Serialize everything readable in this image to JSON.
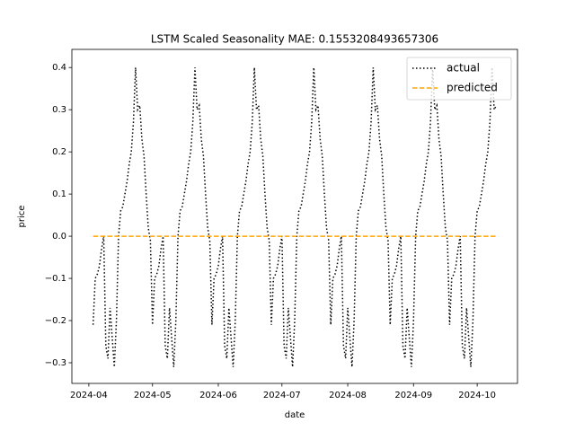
{
  "chart_data": {
    "type": "line",
    "title": "LSTM Scaled Seasonality MAE: 0.1553208493657306",
    "xlabel": "date",
    "ylabel": "price",
    "x": [
      "2024-04-03",
      "2024-04-04",
      "2024-04-05",
      "2024-04-06",
      "2024-04-07",
      "2024-04-08",
      "2024-04-09",
      "2024-04-10",
      "2024-04-11",
      "2024-04-12",
      "2024-04-13",
      "2024-04-14",
      "2024-04-15",
      "2024-04-16",
      "2024-04-17",
      "2024-04-18",
      "2024-04-19",
      "2024-04-20",
      "2024-04-21",
      "2024-04-22",
      "2024-04-23",
      "2024-04-24",
      "2024-04-25",
      "2024-04-26",
      "2024-04-27",
      "2024-04-28",
      "2024-04-29",
      "2024-04-30",
      "2024-05-01",
      "2024-05-02",
      "2024-05-03",
      "2024-05-04",
      "2024-05-05",
      "2024-05-06",
      "2024-05-07",
      "2024-05-08",
      "2024-05-09",
      "2024-05-10",
      "2024-05-11",
      "2024-05-12",
      "2024-05-13",
      "2024-05-14",
      "2024-05-15",
      "2024-05-16",
      "2024-05-17",
      "2024-05-18",
      "2024-05-19",
      "2024-05-20",
      "2024-05-21",
      "2024-05-22",
      "2024-05-23",
      "2024-05-24",
      "2024-05-25",
      "2024-05-26",
      "2024-05-27",
      "2024-05-28",
      "2024-05-29",
      "2024-05-30",
      "2024-05-31",
      "2024-06-01",
      "2024-06-02",
      "2024-06-03",
      "2024-06-04",
      "2024-06-05",
      "2024-06-06",
      "2024-06-07",
      "2024-06-08",
      "2024-06-09",
      "2024-06-10",
      "2024-06-11",
      "2024-06-12",
      "2024-06-13",
      "2024-06-14",
      "2024-06-15",
      "2024-06-16",
      "2024-06-17",
      "2024-06-18",
      "2024-06-19",
      "2024-06-20",
      "2024-06-21",
      "2024-06-22",
      "2024-06-23",
      "2024-06-24",
      "2024-06-25",
      "2024-06-26",
      "2024-06-27",
      "2024-06-28",
      "2024-06-29",
      "2024-06-30",
      "2024-07-01",
      "2024-07-02",
      "2024-07-03",
      "2024-07-04",
      "2024-07-05",
      "2024-07-06",
      "2024-07-07",
      "2024-07-08",
      "2024-07-09",
      "2024-07-10",
      "2024-07-11",
      "2024-07-12",
      "2024-07-13",
      "2024-07-14",
      "2024-07-15",
      "2024-07-16",
      "2024-07-17",
      "2024-07-18",
      "2024-07-19",
      "2024-07-20",
      "2024-07-21",
      "2024-07-22",
      "2024-07-23",
      "2024-07-24",
      "2024-07-25",
      "2024-07-26",
      "2024-07-27",
      "2024-07-28",
      "2024-07-29",
      "2024-07-30",
      "2024-07-31",
      "2024-08-01",
      "2024-08-02",
      "2024-08-03",
      "2024-08-04",
      "2024-08-05",
      "2024-08-06",
      "2024-08-07",
      "2024-08-08",
      "2024-08-09",
      "2024-08-10",
      "2024-08-11",
      "2024-08-12",
      "2024-08-13",
      "2024-08-14",
      "2024-08-15",
      "2024-08-16",
      "2024-08-17",
      "2024-08-18",
      "2024-08-19",
      "2024-08-20",
      "2024-08-21",
      "2024-08-22",
      "2024-08-23",
      "2024-08-24",
      "2024-08-25",
      "2024-08-26",
      "2024-08-27",
      "2024-08-28",
      "2024-08-29",
      "2024-08-30",
      "2024-08-31",
      "2024-09-01",
      "2024-09-02",
      "2024-09-03",
      "2024-09-04",
      "2024-09-05",
      "2024-09-06",
      "2024-09-07",
      "2024-09-08",
      "2024-09-09",
      "2024-09-10",
      "2024-09-11",
      "2024-09-12",
      "2024-09-13",
      "2024-09-14",
      "2024-09-15",
      "2024-09-16",
      "2024-09-17",
      "2024-09-18",
      "2024-09-19",
      "2024-09-20",
      "2024-09-21",
      "2024-09-22",
      "2024-09-23",
      "2024-09-24",
      "2024-09-25",
      "2024-09-26",
      "2024-09-27",
      "2024-09-28",
      "2024-09-29",
      "2024-09-30",
      "2024-10-01",
      "2024-10-02",
      "2024-10-03",
      "2024-10-04",
      "2024-10-05",
      "2024-10-06",
      "2024-10-07",
      "2024-10-08",
      "2024-10-09",
      "2024-10-10"
    ],
    "series": [
      {
        "name": "actual",
        "color": "#000000",
        "dash": "dotted",
        "values": [
          -0.21,
          -0.1,
          -0.09,
          -0.07,
          -0.03,
          0,
          -0.26,
          -0.29,
          -0.17,
          -0.24,
          -0.31,
          -0.2,
          0,
          0.06,
          0.07,
          0.1,
          0.13,
          0.17,
          0.2,
          0.27,
          0.4,
          0.3,
          0.31,
          0.23,
          0.19,
          0.1,
          0.02,
          -0.01,
          -0.21,
          -0.1,
          -0.09,
          -0.07,
          -0.03,
          0,
          -0.26,
          -0.29,
          -0.17,
          -0.24,
          -0.31,
          -0.2,
          0,
          0.06,
          0.07,
          0.1,
          0.13,
          0.17,
          0.2,
          0.27,
          0.4,
          0.3,
          0.31,
          0.23,
          0.19,
          0.1,
          0.02,
          -0.01,
          -0.21,
          -0.1,
          -0.09,
          -0.07,
          -0.03,
          0,
          -0.26,
          -0.29,
          -0.17,
          -0.24,
          -0.31,
          -0.2,
          0,
          0.06,
          0.07,
          0.1,
          0.13,
          0.17,
          0.2,
          0.27,
          0.4,
          0.3,
          0.31,
          0.23,
          0.19,
          0.1,
          0.02,
          -0.01,
          -0.21,
          -0.1,
          -0.09,
          -0.07,
          -0.03,
          0,
          -0.26,
          -0.29,
          -0.17,
          -0.24,
          -0.31,
          -0.2,
          0,
          0.06,
          0.07,
          0.1,
          0.13,
          0.17,
          0.2,
          0.27,
          0.4,
          0.3,
          0.31,
          0.23,
          0.19,
          0.1,
          0.02,
          -0.01,
          -0.21,
          -0.1,
          -0.09,
          -0.07,
          -0.03,
          0,
          -0.26,
          -0.29,
          -0.17,
          -0.24,
          -0.31,
          -0.2,
          0,
          0.06,
          0.07,
          0.1,
          0.13,
          0.17,
          0.2,
          0.27,
          0.4,
          0.3,
          0.31,
          0.23,
          0.19,
          0.1,
          0.02,
          -0.01,
          -0.21,
          -0.1,
          -0.09,
          -0.07,
          -0.03,
          0,
          -0.26,
          -0.29,
          -0.17,
          -0.24,
          -0.31,
          -0.2,
          0,
          0.06,
          0.07,
          0.1,
          0.13,
          0.17,
          0.2,
          0.27,
          0.4,
          0.3,
          0.31,
          0.23,
          0.19,
          0.1,
          0.02,
          -0.01,
          -0.21,
          -0.1,
          -0.09,
          -0.07,
          -0.03,
          0,
          -0.26,
          -0.29,
          -0.17,
          -0.24,
          -0.31,
          -0.2,
          0,
          0.06,
          0.07,
          0.1,
          0.13,
          0.17,
          0.2,
          0.27,
          0.4,
          0.3,
          0.31
        ]
      },
      {
        "name": "predicted",
        "color": "#ffa500",
        "dash": "dashed",
        "values": [
          0,
          0,
          0,
          0,
          0,
          0,
          0,
          0,
          0,
          0,
          0,
          0,
          0,
          0,
          0,
          0,
          0,
          0,
          0,
          0,
          0,
          0,
          0,
          0,
          0,
          0,
          0,
          0,
          0,
          0,
          0,
          0,
          0,
          0,
          0,
          0,
          0,
          0,
          0,
          0,
          0,
          0,
          0,
          0,
          0,
          0,
          0,
          0,
          0,
          0,
          0,
          0,
          0,
          0,
          0,
          0,
          0,
          0,
          0,
          0,
          0,
          0,
          0,
          0,
          0,
          0,
          0,
          0,
          0,
          0,
          0,
          0,
          0,
          0,
          0,
          0,
          0,
          0,
          0,
          0,
          0,
          0,
          0,
          0,
          0,
          0,
          0,
          0,
          0,
          0,
          0,
          0,
          0,
          0,
          0,
          0,
          0,
          0,
          0,
          0,
          0,
          0,
          0,
          0,
          0,
          0,
          0,
          0,
          0,
          0,
          0,
          0,
          0,
          0,
          0,
          0,
          0,
          0,
          0,
          0,
          0,
          0,
          0,
          0,
          0,
          0,
          0,
          0,
          0,
          0,
          0,
          0,
          0,
          0,
          0,
          0,
          0,
          0,
          0,
          0,
          0,
          0,
          0,
          0,
          0,
          0,
          0,
          0,
          0,
          0,
          0,
          0,
          0,
          0,
          0,
          0,
          0,
          0,
          0,
          0,
          0,
          0,
          0,
          0,
          0,
          0,
          0,
          0,
          0,
          0,
          0,
          0,
          0,
          0,
          0,
          0,
          0,
          0,
          0,
          0,
          0,
          0,
          0,
          0,
          0,
          0,
          0,
          0,
          0,
          0,
          0
        ]
      }
    ],
    "xlim": [
      "2024-03-24",
      "2024-10-20"
    ],
    "xticks": [
      {
        "value": "2024-04-01",
        "label": "2024-04"
      },
      {
        "value": "2024-05-01",
        "label": "2024-05"
      },
      {
        "value": "2024-06-01",
        "label": "2024-06"
      },
      {
        "value": "2024-07-01",
        "label": "2024-07"
      },
      {
        "value": "2024-08-01",
        "label": "2024-08"
      },
      {
        "value": "2024-09-01",
        "label": "2024-09"
      },
      {
        "value": "2024-10-01",
        "label": "2024-10"
      }
    ],
    "ylim": [
      -0.349,
      0.443
    ],
    "yticks": [
      {
        "value": -0.3,
        "label": "−0.3"
      },
      {
        "value": -0.2,
        "label": "−0.2"
      },
      {
        "value": -0.1,
        "label": "−0.1"
      },
      {
        "value": 0,
        "label": "0.0"
      },
      0.1,
      0.2,
      0.3,
      0.4
    ],
    "legend": "upper right",
    "grid": false
  }
}
